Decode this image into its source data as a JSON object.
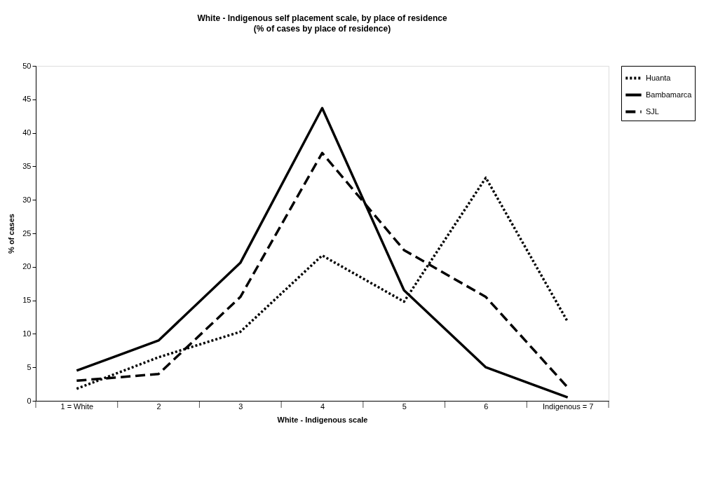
{
  "chart_data": {
    "type": "line",
    "title": "White - Indigenous self placement scale, by place of residence",
    "subtitle": "(% of cases by place of residence)",
    "xlabel": "White - Indigenous scale",
    "ylabel": "% of cases",
    "categories": [
      "1 = White",
      "2",
      "3",
      "4",
      "5",
      "6",
      "Indigenous = 7"
    ],
    "series": [
      {
        "name": "Huanta",
        "color": "#000000",
        "line_style": "dotted",
        "values": [
          1.8,
          6.5,
          10.3,
          21.7,
          14.8,
          33.3,
          11.8
        ]
      },
      {
        "name": "Bambamarca",
        "color": "#000000",
        "line_style": "solid",
        "values": [
          4.5,
          9.0,
          20.6,
          43.7,
          16.5,
          5.0,
          0.5
        ]
      },
      {
        "name": "SJL",
        "color": "#000000",
        "line_style": "dashed",
        "values": [
          3.0,
          4.0,
          15.5,
          37.0,
          22.5,
          15.5,
          2.0
        ]
      }
    ],
    "ylim": [
      0,
      50
    ],
    "yticks": [
      0,
      5,
      10,
      15,
      20,
      25,
      30,
      35,
      40,
      45,
      50
    ],
    "grid": false,
    "legend": "right",
    "marker": "none"
  }
}
